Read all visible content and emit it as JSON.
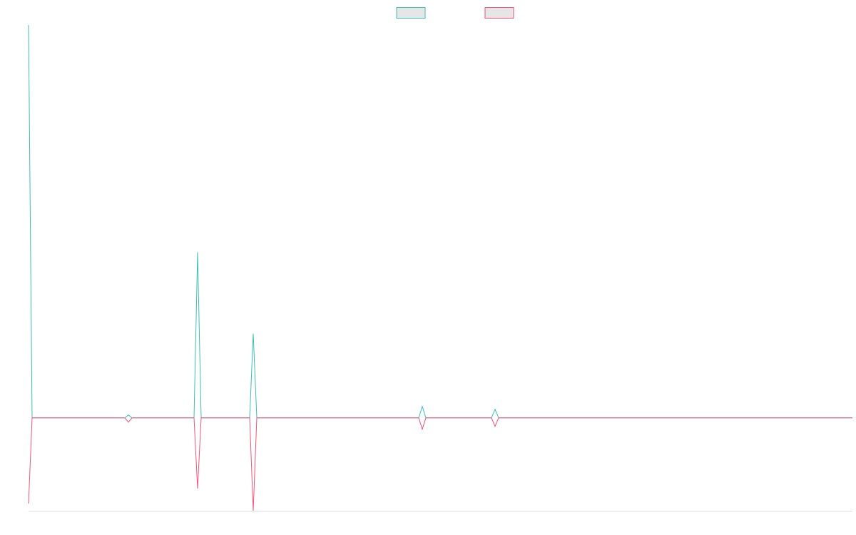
{
  "chart_data": {
    "type": "line",
    "x": [
      0,
      5,
      135,
      140,
      145,
      232,
      237,
      242,
      310,
      315,
      320,
      547,
      552,
      557,
      649,
      654,
      659,
      1155
    ],
    "series": [
      {
        "color": "#3cbfb4",
        "values": [
          5.5,
          0,
          0,
          0.04,
          0,
          0,
          2.32,
          0,
          0,
          1.18,
          0,
          0,
          0.16,
          0,
          0,
          0.12,
          0,
          0
        ]
      },
      {
        "color": "#f0557a",
        "values": [
          -1.2,
          0,
          0,
          -0.06,
          0,
          0,
          -0.99,
          0,
          0,
          -1.3,
          0,
          0,
          -0.16,
          0,
          0,
          -0.12,
          0,
          0
        ]
      }
    ],
    "xlim": [
      0,
      1155
    ],
    "ylim": [
      -1.3,
      5.5
    ],
    "legend": "top"
  }
}
